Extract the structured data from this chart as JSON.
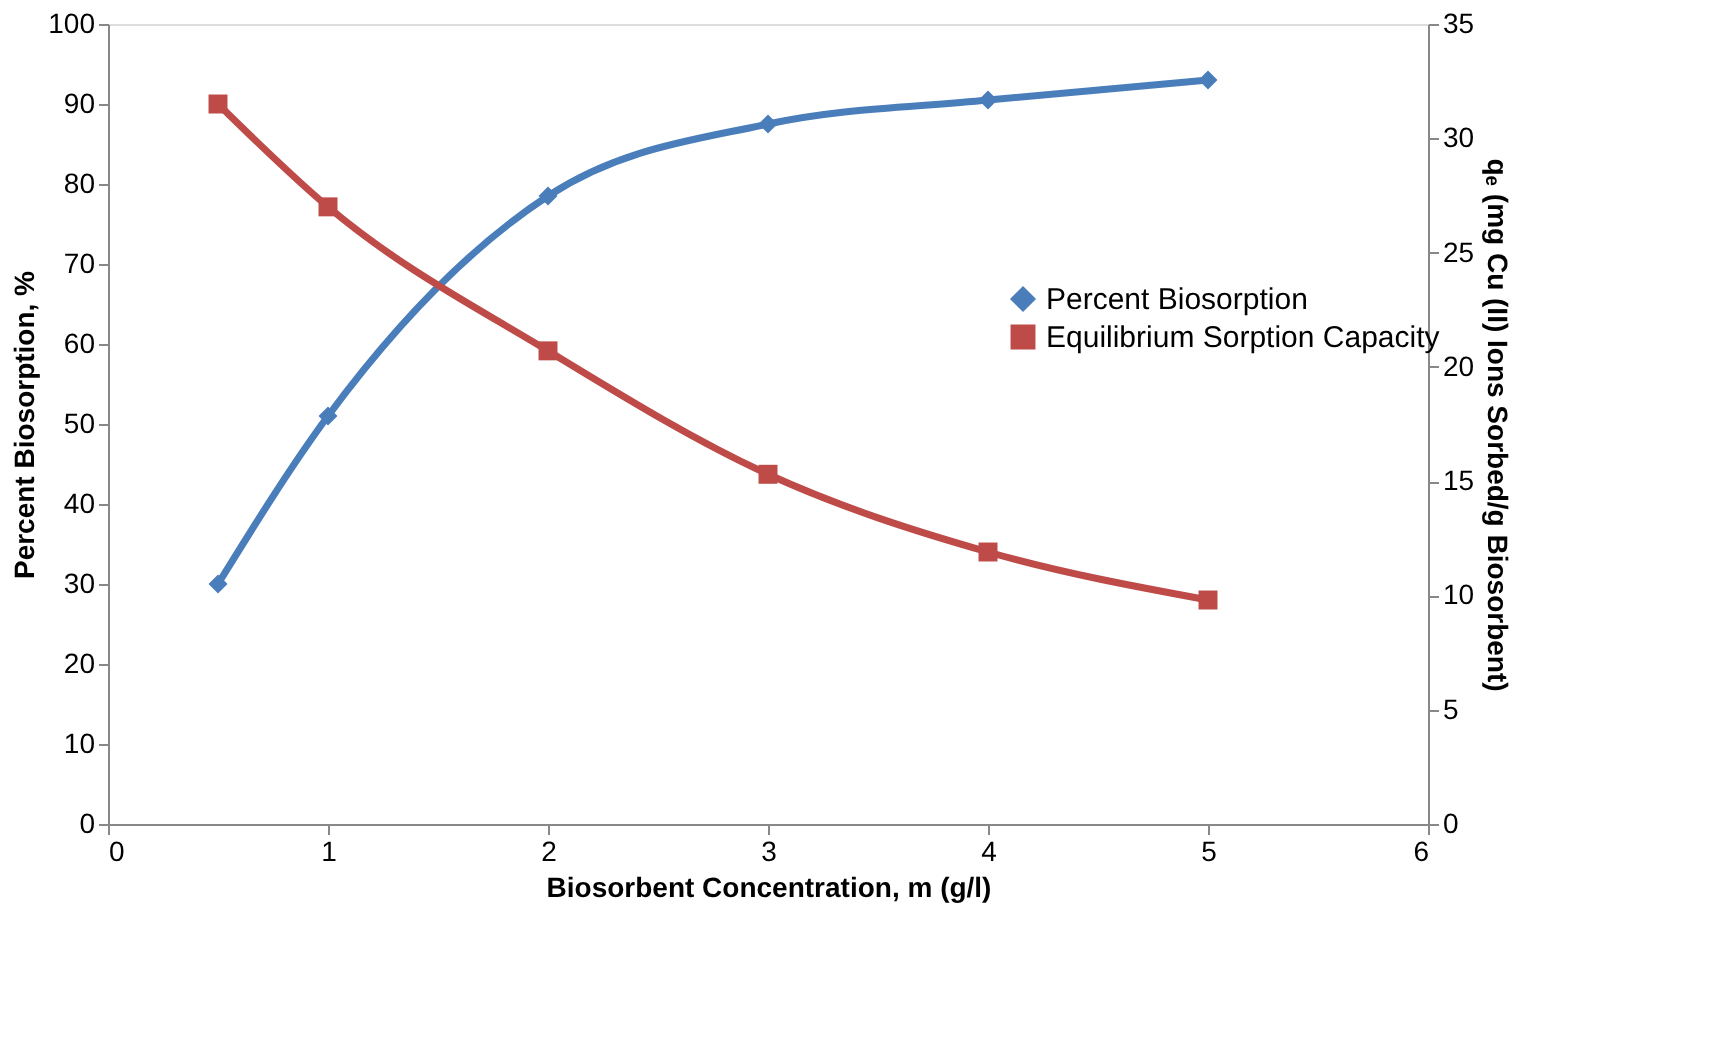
{
  "chart_data": {
    "type": "line",
    "xlabel": "Biosorbent Concentration, m (g/l)",
    "ylabel": "Percent Biosorption, %",
    "y2label": "qₑ (mg Cu (II) Ions Sorbed/g Biosorbent)",
    "x": [
      0.5,
      1,
      2,
      3,
      4,
      5
    ],
    "series": [
      {
        "name": "Percent Biosorption",
        "color": "#4a7ebb",
        "marker": "diamond",
        "values": [
          30,
          51,
          78.5,
          87.5,
          90.5,
          93
        ]
      },
      {
        "name": "Equilibrium Sorption Capacity",
        "color": "#be4b48",
        "marker": "square",
        "axis": "y2",
        "values": [
          31.5,
          27,
          20.7,
          15.3,
          11.9,
          9.8
        ]
      }
    ],
    "xlim": [
      0,
      6
    ],
    "xticks": [
      0,
      1,
      2,
      3,
      4,
      5,
      6
    ],
    "ylim": [
      0,
      100
    ],
    "yticks": [
      0,
      10,
      20,
      30,
      40,
      50,
      60,
      70,
      80,
      90,
      100
    ],
    "y2lim": [
      0,
      35
    ],
    "y2ticks": [
      0,
      5,
      10,
      15,
      20,
      25,
      30,
      35
    ],
    "grid": false,
    "legend": "right",
    "line_style": "solid"
  }
}
